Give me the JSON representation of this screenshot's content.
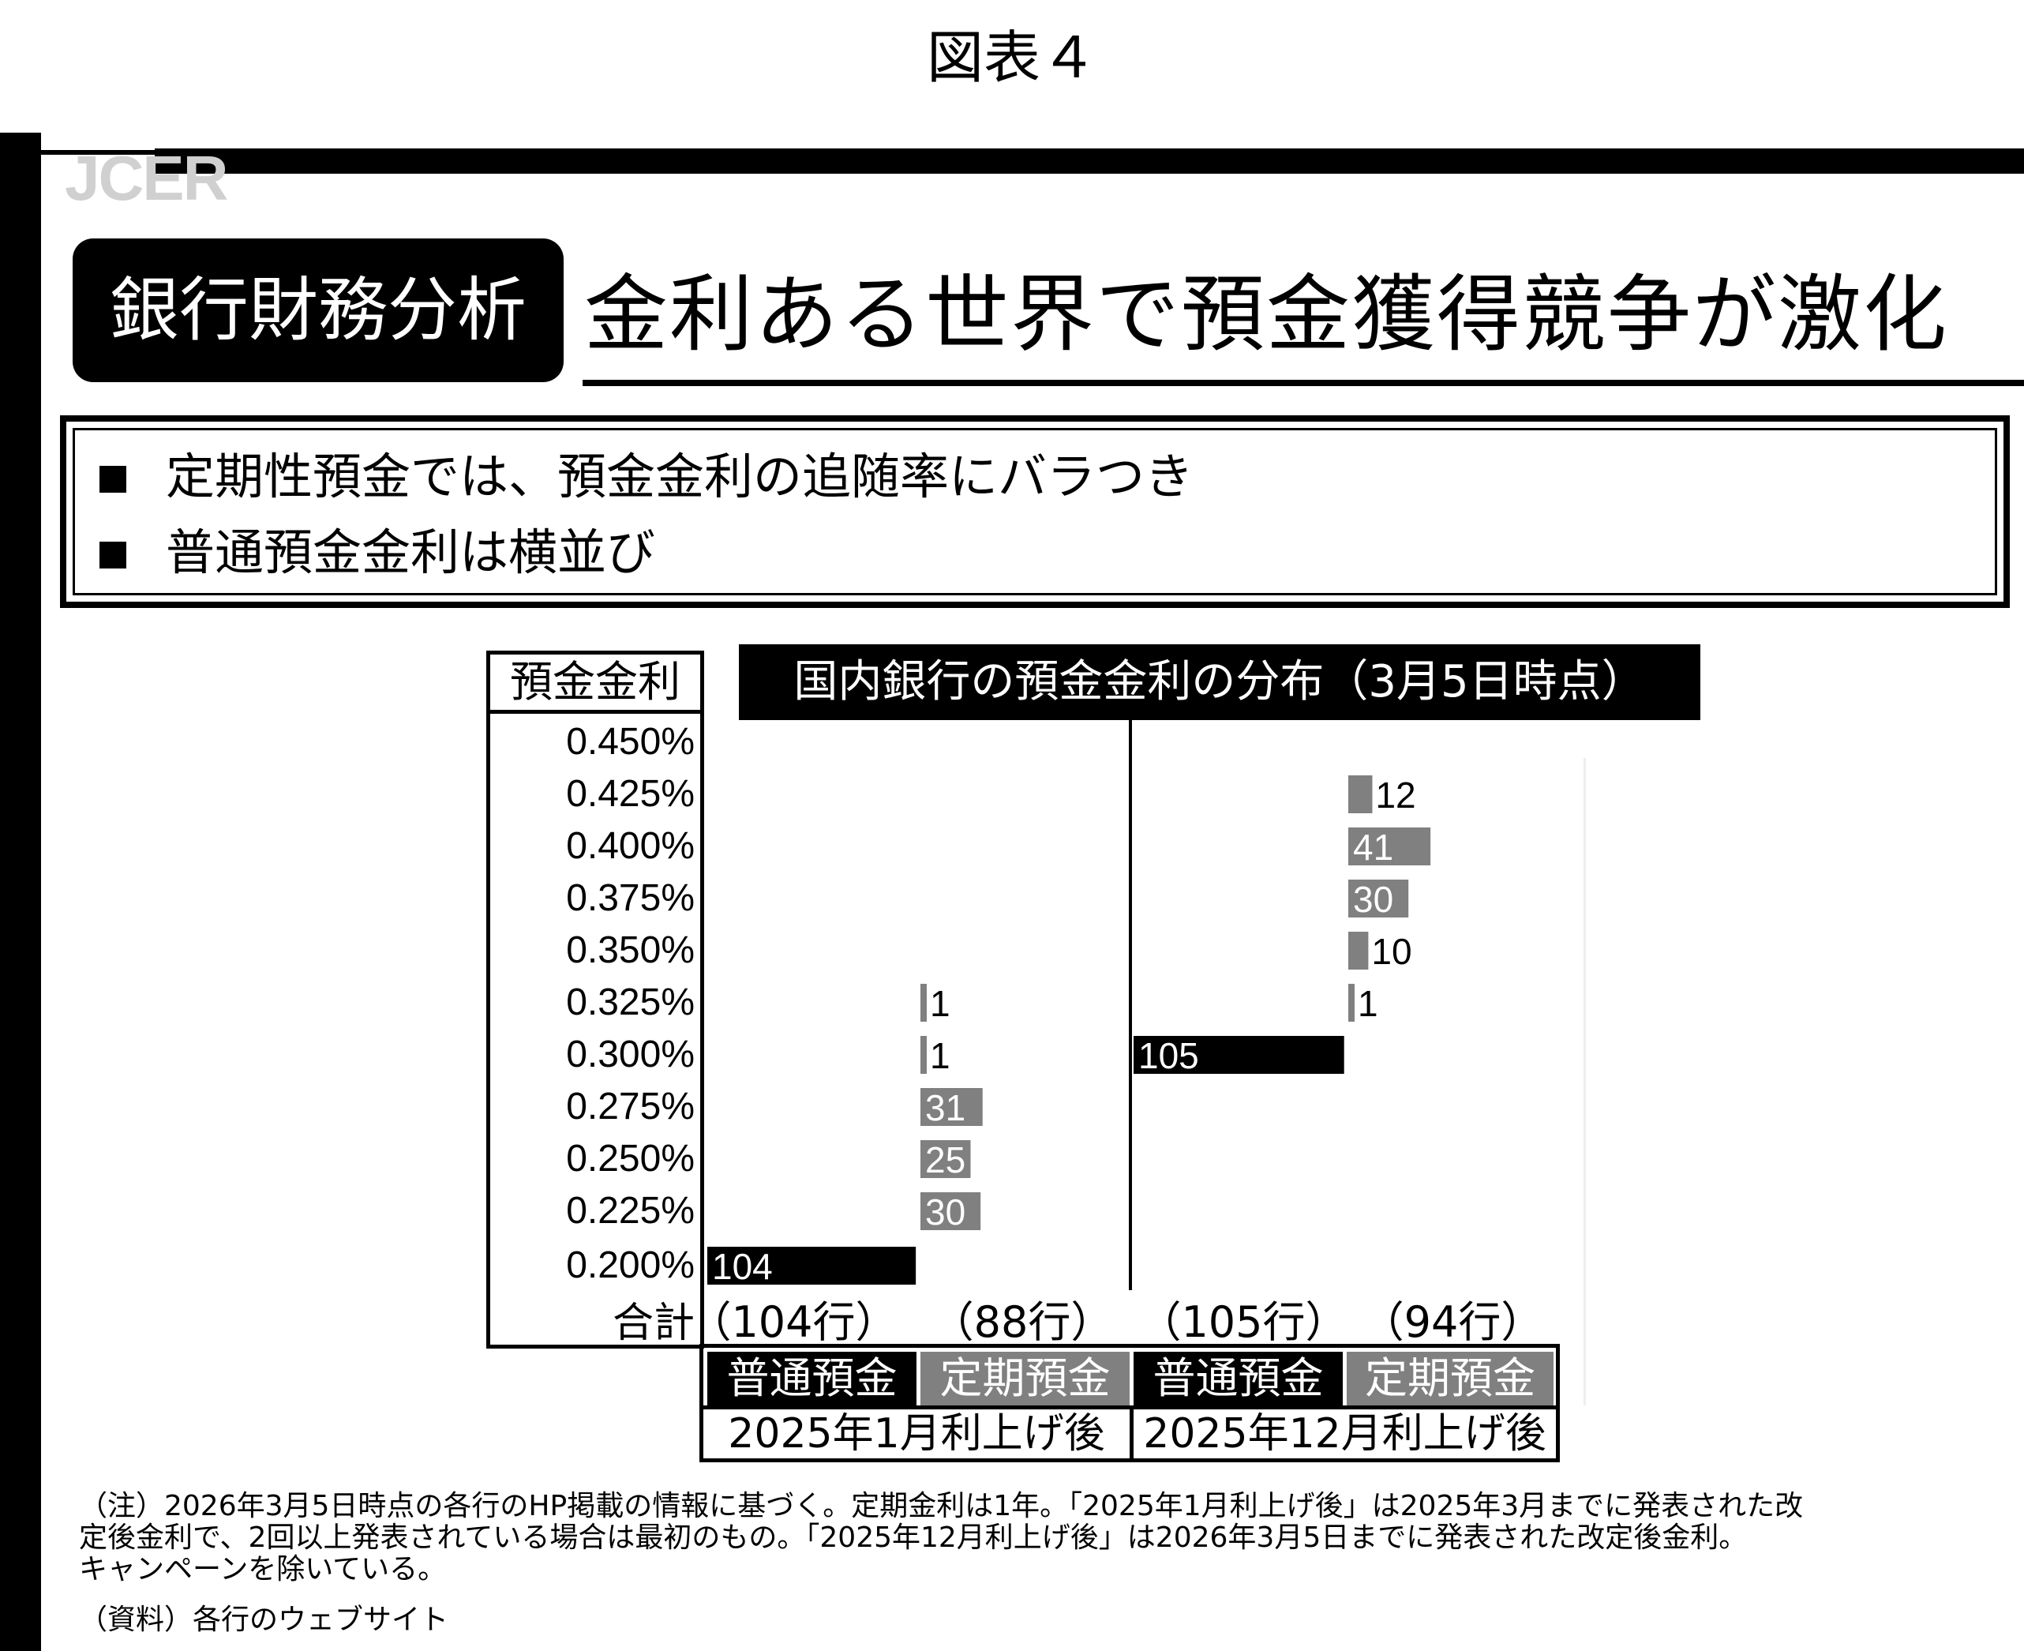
{
  "figure_label": "図表４",
  "logo": "JCER",
  "section_badge": "銀行財務分析",
  "headline": "金利ある世界で預金獲得競争が激化",
  "bullets": [
    "定期性預金では、預金金利の追随率にバラつき",
    "普通預金金利は横並び"
  ],
  "chart_data": {
    "type": "bar",
    "orientation": "horizontal",
    "title": "国内銀行の預金金利の分布（3月5日時点）",
    "ylabel": "預金金利",
    "categories": [
      "0.450%",
      "0.425%",
      "0.400%",
      "0.375%",
      "0.350%",
      "0.325%",
      "0.300%",
      "0.275%",
      "0.250%",
      "0.225%",
      "0.200%"
    ],
    "total_label": "合計",
    "series": [
      {
        "name": "普通預金",
        "period": "2025年1月利上げ後",
        "color": "#000000",
        "total": "（104行）",
        "values": [
          0,
          0,
          0,
          0,
          0,
          0,
          0,
          0,
          0,
          0,
          104
        ]
      },
      {
        "name": "定期預金",
        "period": "2025年1月利上げ後",
        "color": "#808080",
        "total": "（88行）",
        "values": [
          0,
          0,
          0,
          0,
          0,
          1,
          1,
          31,
          25,
          30,
          0
        ]
      },
      {
        "name": "普通預金",
        "period": "2025年12月利上げ後",
        "color": "#000000",
        "total": "（105行）",
        "values": [
          0,
          0,
          0,
          0,
          0,
          0,
          105,
          0,
          0,
          0,
          0
        ]
      },
      {
        "name": "定期預金",
        "period": "2025年12月利上げ後",
        "color": "#808080",
        "total": "（94行）",
        "values": [
          0,
          12,
          41,
          30,
          10,
          1,
          0,
          0,
          0,
          0,
          0
        ]
      }
    ],
    "periods": [
      "2025年1月利上げ後",
      "2025年12月利上げ後"
    ],
    "grid": false,
    "legend": "bottom"
  },
  "notes": [
    "（注）2026年3月5日時点の各行のHP掲載の情報に基づく。定期金利は1年。「2025年1月利上げ後」は2025年3月までに発表された改",
    "定後金利で、2回以上発表されている場合は最初のもの。「2025年12月利上げ後」は2026年3月5日までに発表された改定後金利。",
    "キャンペーンを除いている。"
  ],
  "source": "（資料）各行のウェブサイト"
}
